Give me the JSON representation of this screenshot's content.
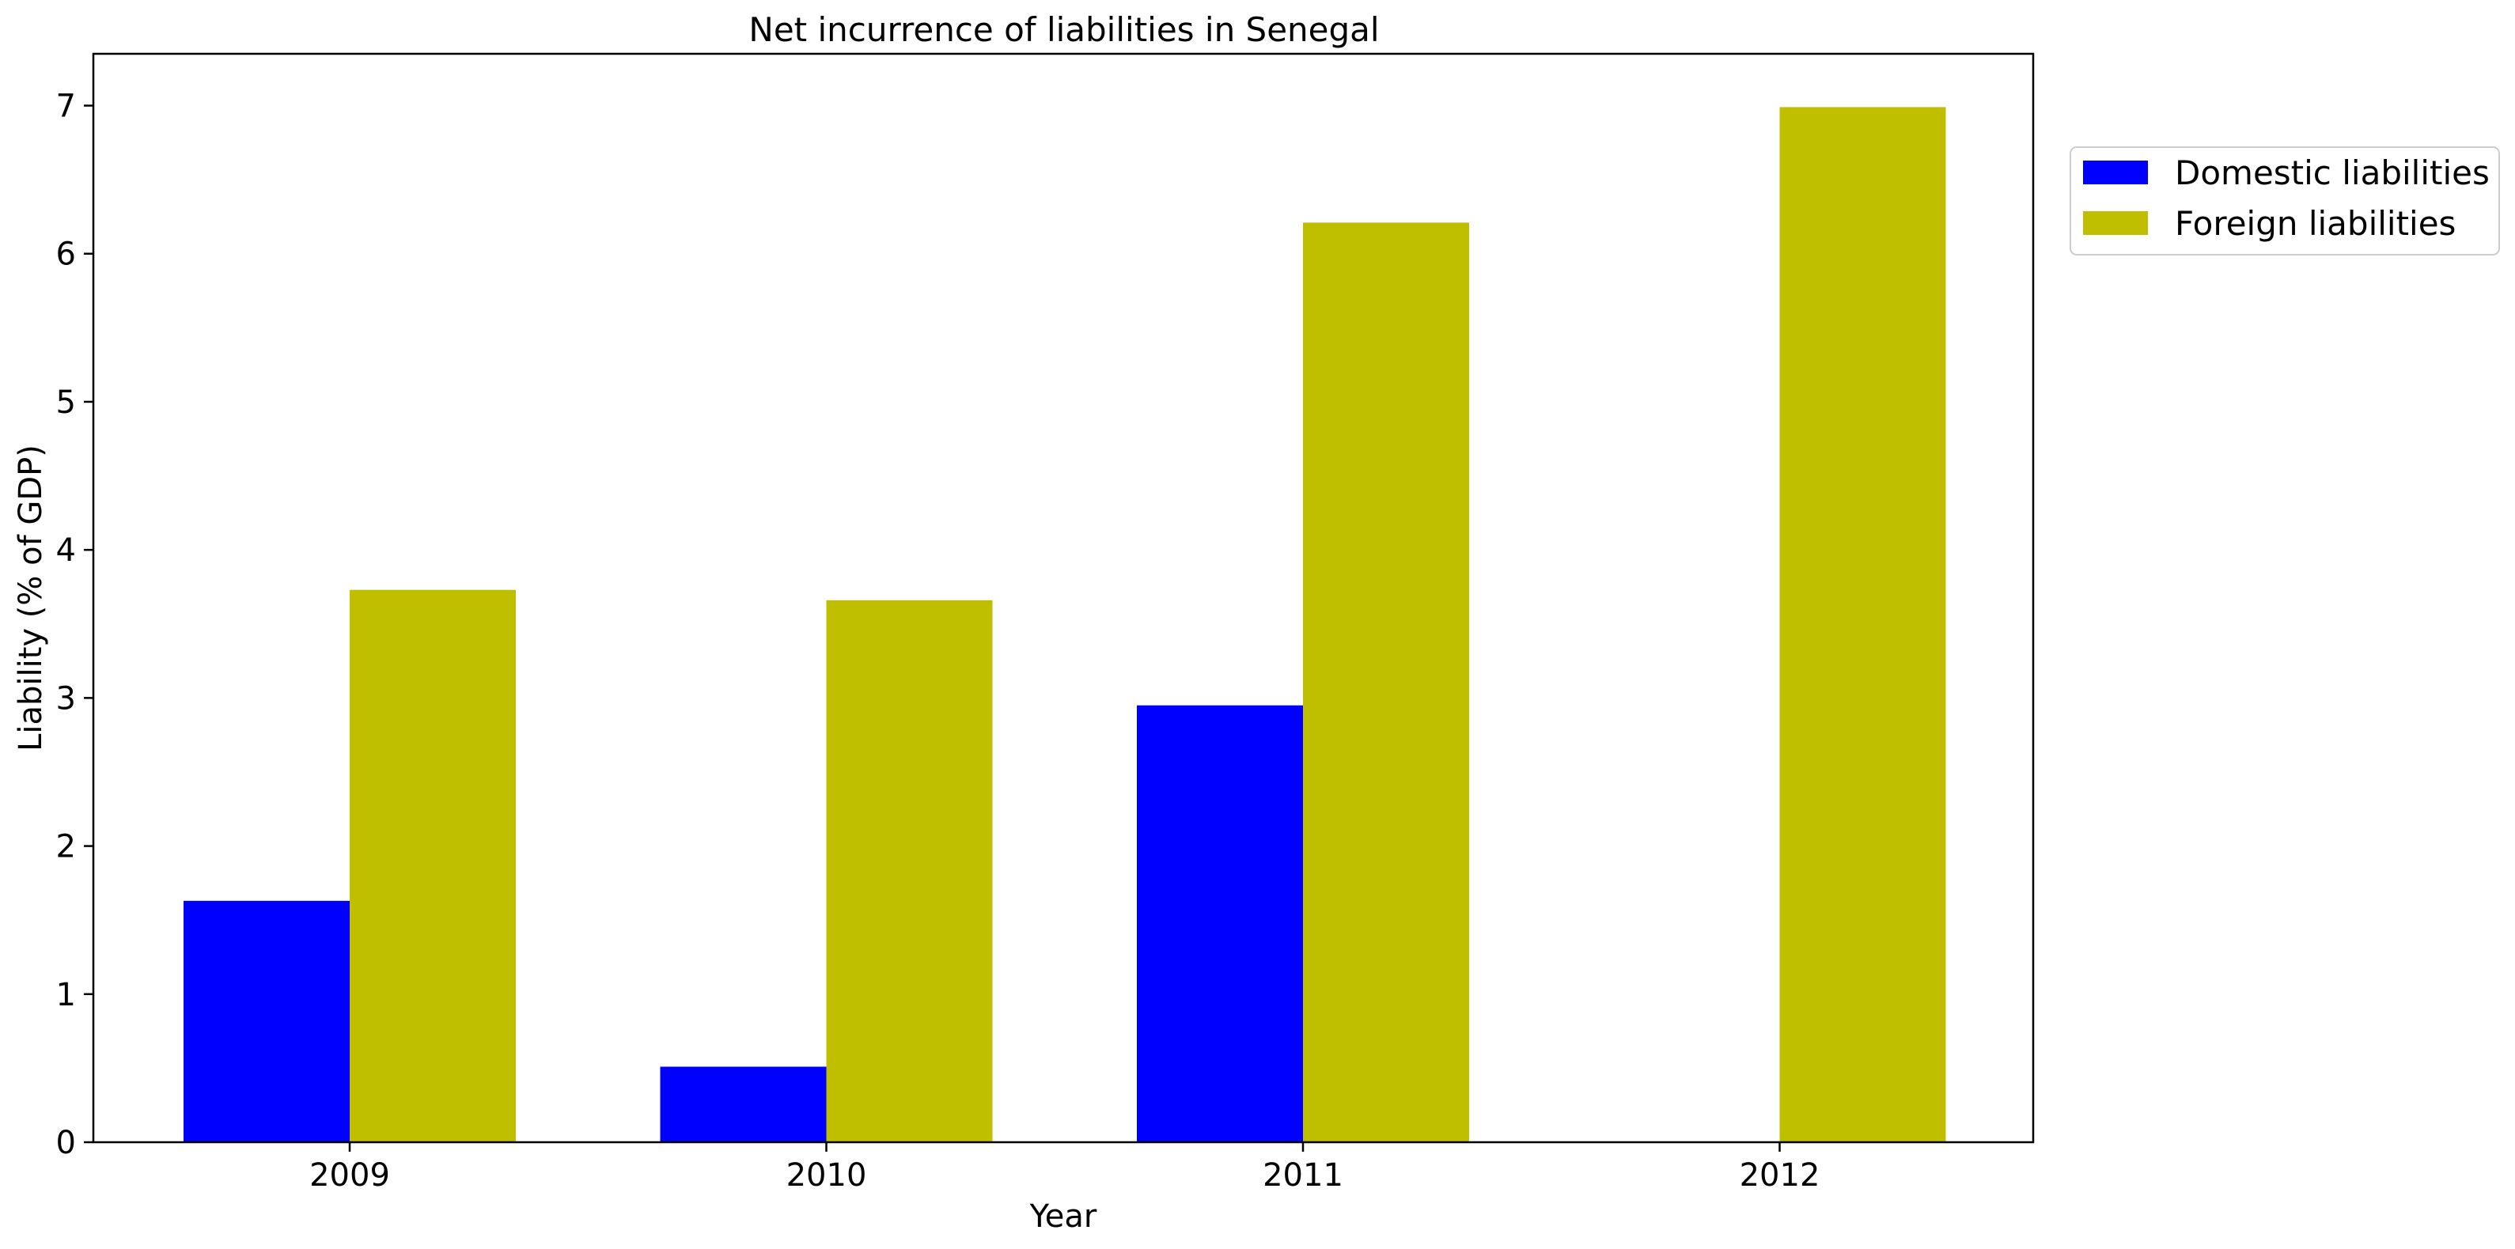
{
  "chart_data": {
    "type": "bar",
    "title": "Net incurrence of liabilities in Senegal",
    "xlabel": "Year",
    "ylabel": "Liability (% of GDP)",
    "categories": [
      "2009",
      "2010",
      "2011",
      "2012"
    ],
    "series": [
      {
        "name": "Domestic liabilities",
        "color": "#0000ff",
        "values": [
          1.63,
          0.51,
          2.95,
          null
        ]
      },
      {
        "name": "Foreign liabilities",
        "color": "#bfbf00",
        "values": [
          3.73,
          3.66,
          6.21,
          6.99
        ]
      }
    ],
    "ylim": [
      0,
      7.35
    ],
    "yticks": [
      0,
      1,
      2,
      3,
      4,
      5,
      6,
      7
    ],
    "grid": false,
    "legend_position": "upper-right-outside"
  }
}
